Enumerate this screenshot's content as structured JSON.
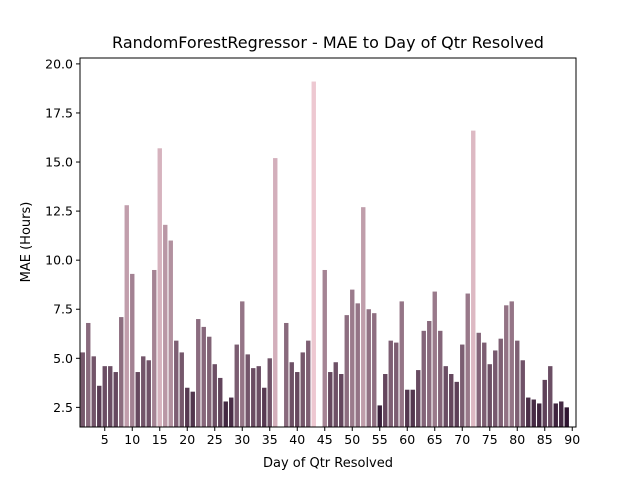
{
  "chart_data": {
    "type": "bar",
    "title": "RandomForestRegressor - MAE to Day of Qtr Resolved",
    "xlabel": "Day of Qtr Resolved",
    "ylabel": "MAE (Hours)",
    "ylim": [
      1.5,
      20.3
    ],
    "yticks": [
      "2.5",
      "5.0",
      "7.5",
      "10.0",
      "12.5",
      "15.0",
      "17.5",
      "20.0"
    ],
    "xticks": [
      "5",
      "10",
      "15",
      "20",
      "25",
      "30",
      "35",
      "40",
      "45",
      "50",
      "55",
      "60",
      "65",
      "70",
      "75",
      "80",
      "85",
      "90"
    ],
    "palette": [
      "#2e1430",
      "#edc8d1"
    ],
    "x": [
      1,
      2,
      3,
      4,
      5,
      6,
      7,
      8,
      9,
      10,
      11,
      12,
      13,
      14,
      15,
      16,
      17,
      18,
      19,
      20,
      21,
      22,
      23,
      24,
      25,
      26,
      27,
      28,
      29,
      30,
      31,
      32,
      33,
      34,
      35,
      36,
      37,
      38,
      39,
      40,
      41,
      42,
      43,
      44,
      45,
      46,
      47,
      48,
      49,
      50,
      51,
      52,
      53,
      54,
      55,
      56,
      57,
      58,
      59,
      60,
      61,
      62,
      63,
      64,
      65,
      66,
      67,
      68,
      69,
      70,
      71,
      72,
      73,
      74,
      75,
      76,
      77,
      78,
      79,
      80,
      81,
      82,
      83,
      84,
      85,
      86,
      87,
      88,
      89,
      90
    ],
    "values": [
      5.3,
      6.8,
      5.1,
      3.6,
      4.6,
      4.6,
      4.3,
      7.1,
      12.8,
      9.3,
      4.3,
      5.1,
      4.9,
      9.5,
      15.7,
      11.8,
      11.0,
      5.9,
      5.3,
      3.5,
      3.3,
      7.0,
      6.6,
      6.1,
      4.7,
      4.0,
      2.8,
      3.0,
      5.7,
      7.9,
      5.2,
      4.5,
      4.6,
      3.5,
      5.0,
      15.2,
      null,
      6.8,
      4.8,
      4.3,
      5.3,
      5.9,
      19.1,
      null,
      9.5,
      4.3,
      4.8,
      4.2,
      7.2,
      8.5,
      7.8,
      12.7,
      7.5,
      7.3,
      2.6,
      4.2,
      5.9,
      5.8,
      7.9,
      3.4,
      3.4,
      4.4,
      6.4,
      6.9,
      8.4,
      6.4,
      4.6,
      4.2,
      3.8,
      5.7,
      8.3,
      16.6,
      6.3,
      5.8,
      4.7,
      5.4,
      6.0,
      7.7,
      7.9,
      5.9,
      4.9,
      3.0,
      2.9,
      2.7,
      3.9,
      4.6,
      2.7,
      2.8,
      2.5,
      null
    ]
  }
}
